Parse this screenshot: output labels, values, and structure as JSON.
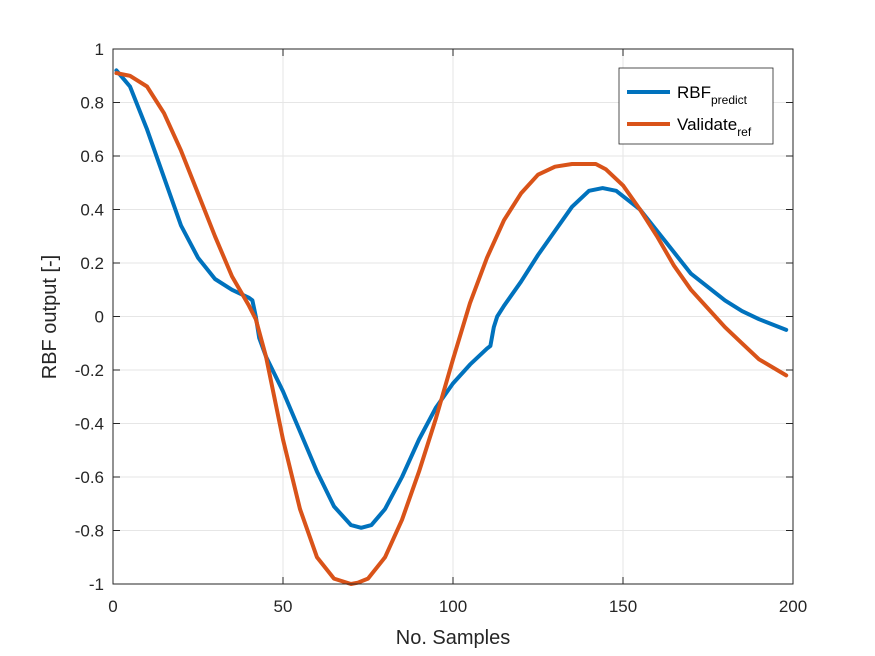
{
  "chart_data": {
    "type": "line",
    "title": "",
    "xlabel": "No. Samples",
    "ylabel": "RBF output [-]",
    "xlim": [
      0,
      200
    ],
    "ylim": [
      -1,
      1
    ],
    "xticks": [
      0,
      50,
      100,
      150,
      200
    ],
    "yticks": [
      -1,
      -0.8,
      -0.6,
      -0.4,
      -0.2,
      0,
      0.2,
      0.4,
      0.6,
      0.8,
      1
    ],
    "xtick_labels": [
      "0",
      "50",
      "100",
      "150",
      "200"
    ],
    "ytick_labels": [
      "-1",
      "-0.8",
      "-0.6",
      "-0.4",
      "-0.2",
      "0",
      "0.2",
      "0.4",
      "0.6",
      "0.8",
      "1"
    ],
    "grid": true,
    "legend_position": "top-right",
    "series": [
      {
        "name_main": "RBF",
        "name_sub": "predict",
        "color": "#0072BD",
        "x": [
          1,
          5,
          10,
          15,
          20,
          25,
          30,
          35,
          40,
          41,
          42,
          43,
          45,
          50,
          55,
          60,
          65,
          70,
          73,
          76,
          80,
          85,
          90,
          95,
          100,
          105,
          110,
          111,
          112,
          113,
          115,
          120,
          125,
          130,
          135,
          140,
          144,
          148,
          155,
          160,
          165,
          170,
          175,
          180,
          185,
          190,
          198
        ],
        "y": [
          0.92,
          0.86,
          0.7,
          0.52,
          0.34,
          0.22,
          0.14,
          0.1,
          0.07,
          0.06,
          0.0,
          -0.08,
          -0.15,
          -0.28,
          -0.43,
          -0.58,
          -0.71,
          -0.78,
          -0.79,
          -0.78,
          -0.72,
          -0.6,
          -0.46,
          -0.34,
          -0.25,
          -0.18,
          -0.12,
          -0.11,
          -0.04,
          0.0,
          0.04,
          0.13,
          0.23,
          0.32,
          0.41,
          0.47,
          0.48,
          0.47,
          0.4,
          0.32,
          0.24,
          0.16,
          0.11,
          0.06,
          0.02,
          -0.01,
          -0.05
        ]
      },
      {
        "name_main": "Validate",
        "name_sub": "ref",
        "color": "#D95319",
        "x": [
          1,
          5,
          10,
          15,
          20,
          25,
          30,
          35,
          40,
          42,
          45,
          50,
          55,
          60,
          65,
          70,
          72,
          75,
          80,
          85,
          90,
          95,
          100,
          105,
          110,
          115,
          120,
          125,
          130,
          135,
          140,
          142,
          145,
          150,
          155,
          160,
          165,
          170,
          175,
          180,
          185,
          190,
          198
        ],
        "y": [
          0.91,
          0.9,
          0.86,
          0.76,
          0.62,
          0.46,
          0.3,
          0.15,
          0.04,
          -0.01,
          -0.15,
          -0.46,
          -0.72,
          -0.9,
          -0.98,
          -1.0,
          -0.995,
          -0.98,
          -0.9,
          -0.76,
          -0.58,
          -0.38,
          -0.16,
          0.05,
          0.22,
          0.36,
          0.46,
          0.53,
          0.56,
          0.57,
          0.57,
          0.57,
          0.55,
          0.49,
          0.4,
          0.3,
          0.19,
          0.1,
          0.03,
          -0.04,
          -0.1,
          -0.16,
          -0.22
        ]
      }
    ]
  }
}
